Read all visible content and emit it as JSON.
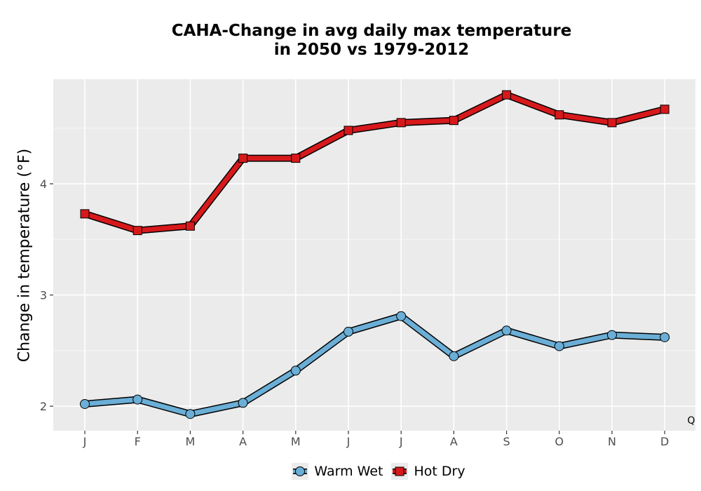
{
  "chart_data": {
    "type": "line",
    "title_line1": "CAHA-Change in avg daily max temperature",
    "title_line2": "in 2050 vs 1979-2012",
    "xlabel": "",
    "ylabel": "Change in temperature (°F)",
    "categories": [
      "J",
      "F",
      "M",
      "A",
      "M",
      "J",
      "J",
      "A",
      "S",
      "O",
      "N",
      "D"
    ],
    "ylim": [
      1.78,
      4.94
    ],
    "yticks": [
      2,
      3,
      4
    ],
    "grid": true,
    "legend_position": "bottom",
    "corner_annotation": "Q",
    "series": [
      {
        "name": "Warm Wet",
        "marker": "circle",
        "color": "#6baed6",
        "values": [
          2.02,
          2.06,
          1.93,
          2.03,
          2.32,
          2.67,
          2.81,
          2.45,
          2.68,
          2.54,
          2.64,
          2.62
        ]
      },
      {
        "name": "Hot Dry",
        "marker": "square",
        "color": "#d7191c",
        "values": [
          3.73,
          3.58,
          3.62,
          4.23,
          4.23,
          4.48,
          4.55,
          4.57,
          4.8,
          4.62,
          4.55,
          4.67
        ]
      }
    ]
  }
}
